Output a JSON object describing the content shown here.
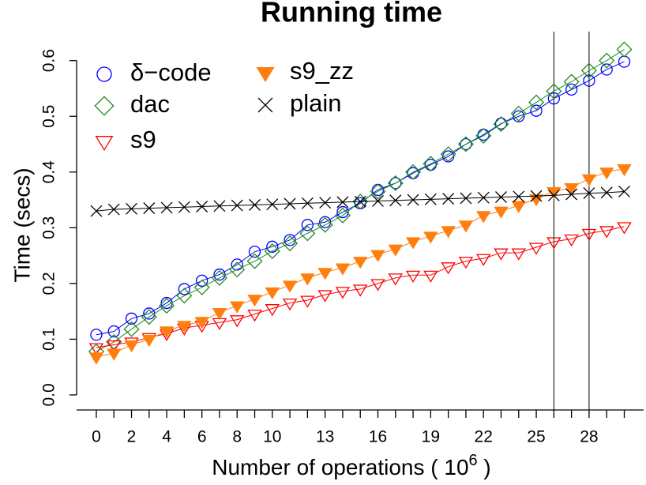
{
  "chart_data": {
    "type": "line",
    "title": "Running time",
    "xlabel": [
      "Number of operations ( 10",
      "6",
      " )"
    ],
    "ylabel": "Time (secs)",
    "x": [
      0,
      1,
      2,
      3,
      4,
      5,
      6,
      7,
      8,
      9,
      10,
      11,
      12,
      13,
      14,
      15,
      16,
      17,
      18,
      19,
      20,
      21,
      22,
      23,
      24,
      25,
      26,
      27,
      28,
      29,
      30
    ],
    "xticks": [
      0,
      1,
      2,
      3,
      4,
      5,
      6,
      7,
      8,
      9,
      10,
      11,
      12,
      13,
      14,
      15,
      16,
      17,
      18,
      19,
      20,
      21,
      22,
      23,
      24,
      25,
      26,
      27,
      28,
      29,
      30
    ],
    "xtick_labels": [
      "0",
      null,
      "2",
      null,
      "4",
      null,
      "6",
      null,
      "8",
      null,
      "10",
      null,
      null,
      "13",
      null,
      null,
      "16",
      null,
      null,
      "19",
      null,
      null,
      "22",
      null,
      null,
      "25",
      null,
      null,
      "28",
      null,
      null
    ],
    "xlim": [
      -1.12,
      31.1
    ],
    "ylim": [
      -0.027,
      0.652
    ],
    "yticks": [
      {
        "value": 0,
        "label": "0.0"
      },
      0.1,
      0.2,
      0.3,
      0.4,
      0.5,
      0.6
    ],
    "vlines": [
      26,
      28
    ],
    "series": [
      {
        "name": "δ−code",
        "color": "#0000ff",
        "marker": "circle",
        "values": [
          0.108,
          0.114,
          0.137,
          0.146,
          0.165,
          0.19,
          0.205,
          0.216,
          0.234,
          0.257,
          0.266,
          0.278,
          0.305,
          0.31,
          0.328,
          0.344,
          0.368,
          0.38,
          0.398,
          0.413,
          0.428,
          0.45,
          0.467,
          0.487,
          0.5,
          0.51,
          0.532,
          0.548,
          0.564,
          0.584,
          0.598
        ]
      },
      {
        "name": "dac",
        "color": "#228b22",
        "marker": "diamond",
        "values": [
          0.078,
          0.095,
          0.118,
          0.14,
          0.16,
          0.178,
          0.193,
          0.21,
          0.225,
          0.24,
          0.258,
          0.272,
          0.29,
          0.305,
          0.322,
          0.347,
          0.365,
          0.38,
          0.4,
          0.415,
          0.432,
          0.45,
          0.465,
          0.486,
          0.505,
          0.525,
          0.545,
          0.562,
          0.582,
          0.6,
          0.62
        ]
      },
      {
        "name": "s9",
        "color": "#ff0000",
        "marker": "triangle-open",
        "values": [
          0.085,
          0.09,
          0.095,
          0.103,
          0.11,
          0.12,
          0.125,
          0.13,
          0.135,
          0.145,
          0.155,
          0.165,
          0.17,
          0.18,
          0.186,
          0.19,
          0.2,
          0.21,
          0.215,
          0.215,
          0.23,
          0.24,
          0.245,
          0.255,
          0.255,
          0.265,
          0.275,
          0.28,
          0.29,
          0.295,
          0.302
        ]
      },
      {
        "name": "s9_zz",
        "color": "#ff7f0e",
        "marker": "triangle-filled",
        "values": [
          0.068,
          0.075,
          0.09,
          0.1,
          0.115,
          0.125,
          0.132,
          0.148,
          0.16,
          0.172,
          0.185,
          0.197,
          0.21,
          0.22,
          0.228,
          0.24,
          0.252,
          0.262,
          0.275,
          0.285,
          0.295,
          0.305,
          0.322,
          0.33,
          0.34,
          0.352,
          0.365,
          0.372,
          0.388,
          0.4,
          0.406
        ]
      },
      {
        "name": "plain",
        "color": "#000000",
        "marker": "cross",
        "values": [
          0.33,
          0.333,
          0.334,
          0.335,
          0.336,
          0.337,
          0.338,
          0.339,
          0.34,
          0.341,
          0.342,
          0.343,
          0.344,
          0.345,
          0.346,
          0.347,
          0.348,
          0.349,
          0.35,
          0.351,
          0.352,
          0.353,
          0.354,
          0.355,
          0.356,
          0.357,
          0.358,
          0.36,
          0.362,
          0.363,
          0.365
        ]
      }
    ]
  }
}
